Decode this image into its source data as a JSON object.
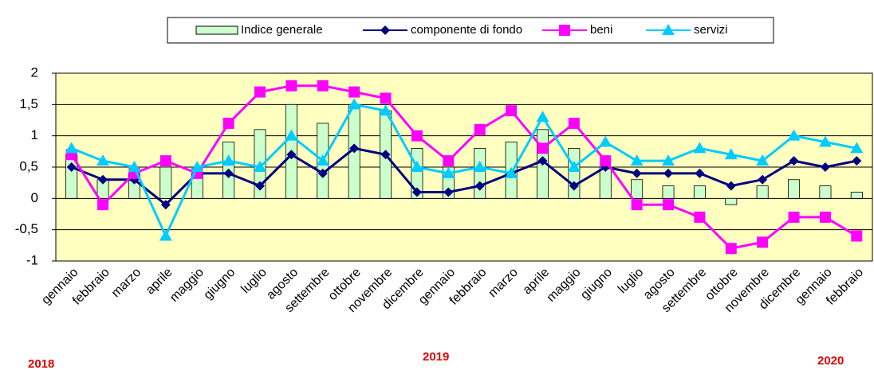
{
  "chart_data": {
    "type": "bar_line",
    "categories": [
      "gennaio",
      "febbraio",
      "marzo",
      "aprile",
      "maggio",
      "giugno",
      "luglio",
      "agosto",
      "settembre",
      "ottobre",
      "novembre",
      "dicembre",
      "gennaio",
      "febbraio",
      "marzo",
      "aprile",
      "maggio",
      "giugno",
      "luglio",
      "agosto",
      "settembre",
      "ottobre",
      "novembre",
      "dicembre",
      "gennaio",
      "febbraio"
    ],
    "series": [
      {
        "name": "Indice generale",
        "kind": "bar",
        "color": "#ccffcc",
        "values": [
          0.7,
          0.3,
          0.4,
          0.5,
          0.4,
          0.9,
          1.1,
          1.5,
          1.2,
          1.5,
          1.4,
          0.8,
          0.5,
          0.8,
          0.9,
          1.1,
          0.8,
          0.5,
          0.3,
          0.2,
          0.2,
          -0.1,
          0.2,
          0.3,
          0.2,
          0.1
        ]
      },
      {
        "name": "componente di fondo",
        "kind": "line",
        "marker": "diamond",
        "color": "#000080",
        "values": [
          0.5,
          0.3,
          0.3,
          -0.1,
          0.4,
          0.4,
          0.2,
          0.7,
          0.4,
          0.8,
          0.7,
          0.1,
          0.1,
          0.2,
          0.4,
          0.6,
          0.2,
          0.5,
          0.4,
          0.4,
          0.4,
          0.2,
          0.3,
          0.6,
          0.5,
          0.6
        ]
      },
      {
        "name": "beni",
        "kind": "line",
        "marker": "square",
        "color": "#ff00ff",
        "values": [
          0.7,
          -0.1,
          0.4,
          0.6,
          0.4,
          1.2,
          1.7,
          1.8,
          1.8,
          1.7,
          1.6,
          1.0,
          0.6,
          1.1,
          1.4,
          0.8,
          1.2,
          0.6,
          -0.1,
          -0.1,
          -0.3,
          -0.8,
          -0.7,
          -0.3,
          -0.3,
          -0.6
        ]
      },
      {
        "name": "servizi",
        "kind": "line",
        "marker": "triangle",
        "color": "#00ccff",
        "values": [
          0.8,
          0.6,
          0.5,
          -0.6,
          0.5,
          0.6,
          0.5,
          1.0,
          0.6,
          1.5,
          1.4,
          0.5,
          0.4,
          0.5,
          0.4,
          1.3,
          0.5,
          0.9,
          0.6,
          0.6,
          0.8,
          0.7,
          0.6,
          1.0,
          0.9,
          0.8
        ]
      }
    ],
    "ylim": [
      -1,
      2
    ],
    "yticks": [
      -1,
      {
        "value": -0.5,
        "label": "-0,5"
      },
      0,
      {
        "value": 0.5,
        "label": "0,5"
      },
      1,
      {
        "value": 1.5,
        "label": "1,5"
      },
      2
    ],
    "grid": true,
    "legend": "top",
    "annotations": [
      "2018",
      "2019",
      "2020"
    ]
  }
}
